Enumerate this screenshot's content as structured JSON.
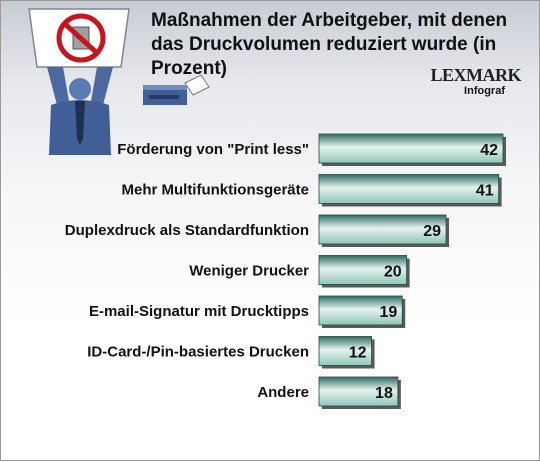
{
  "header": {
    "title": "Maßnahmen der Arbeitgeber, mit denen das Druckvolumen reduziert wurde (in Prozent)",
    "brand": "LEXMARK",
    "source": "Infograf"
  },
  "icons": {
    "figure": "person-holding-no-paper-sign-icon",
    "printer": "printer-icon"
  },
  "colors": {
    "bar_dark": "#2f6d62",
    "bar_light": "#e4f2ee",
    "bar_mid": "#8fc6b9",
    "bar_shadow": "#5a5a5a"
  },
  "chart_data": {
    "type": "bar",
    "orientation": "horizontal",
    "title": "Maßnahmen der Arbeitgeber, mit denen das Druckvolumen reduziert wurde (in Prozent)",
    "categories": [
      "Förderung von \"Print less\"",
      "Mehr Multifunktionsgeräte",
      "Duplexdruck als Standardfunktion",
      "Weniger Drucker",
      "E-mail-Signatur mit Drucktipps",
      "ID-Card-/Pin-basiertes Drucken",
      "Andere"
    ],
    "values": [
      42,
      41,
      29,
      20,
      19,
      12,
      18
    ],
    "xlim": [
      0,
      42
    ],
    "grid": false,
    "legend": "none"
  }
}
